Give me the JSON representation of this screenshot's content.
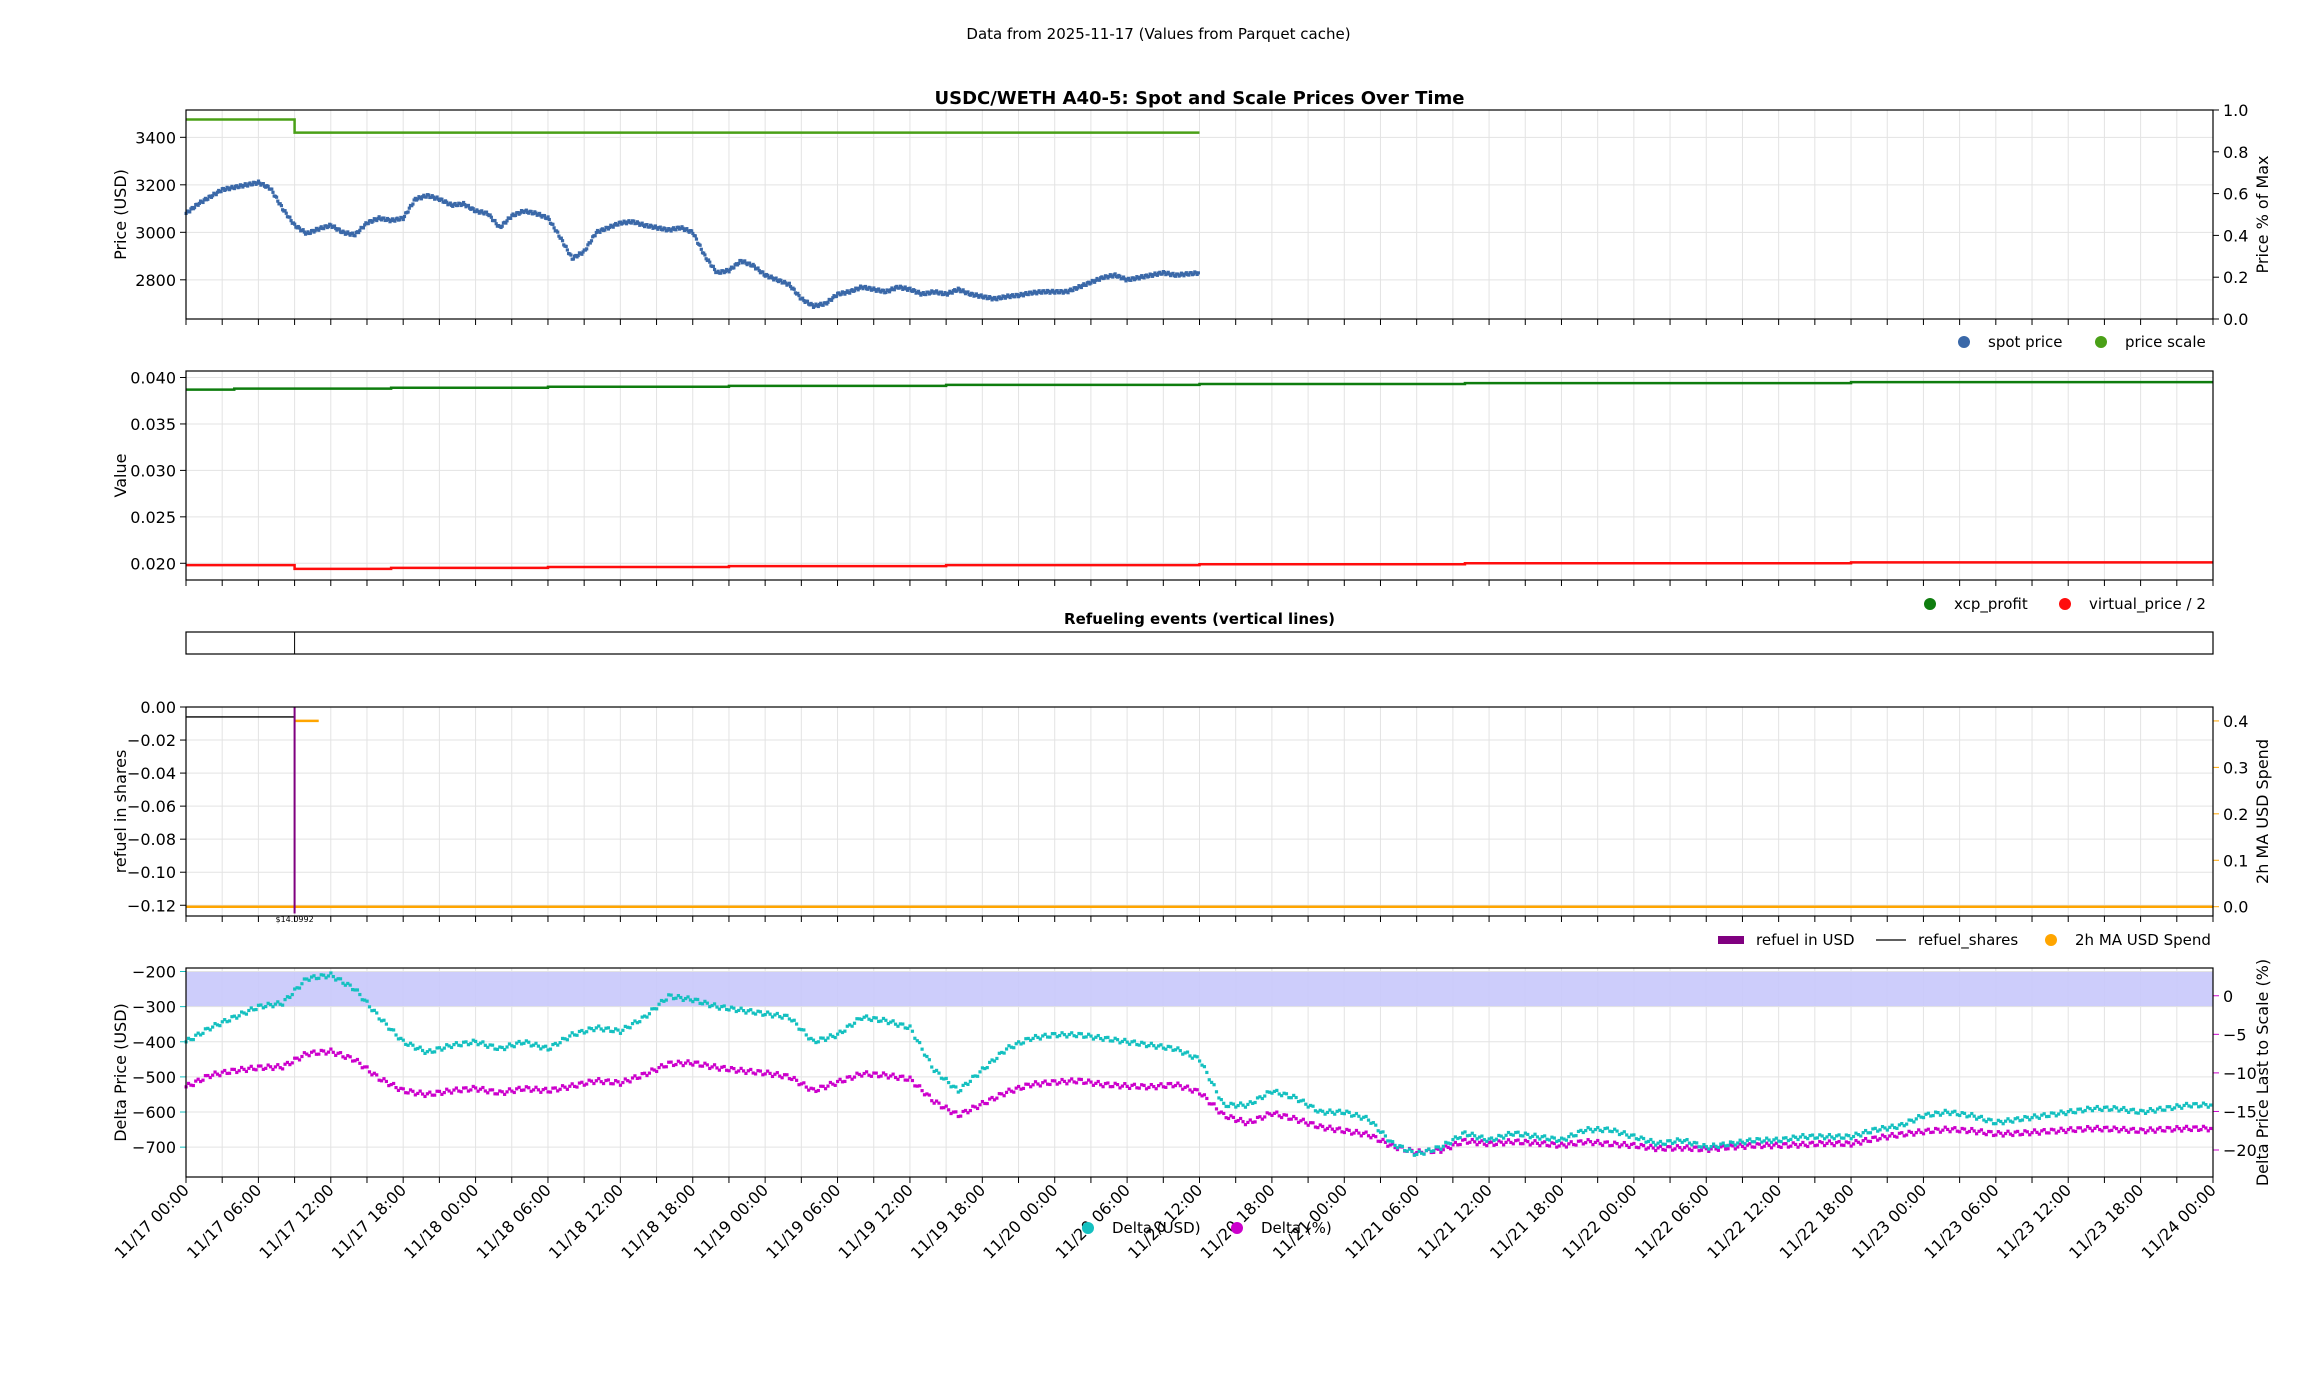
{
  "suptitle": "Data from 2025-11-17 (Values from Parquet cache)",
  "colors": {
    "spot": "#3a68a8",
    "scale": "#4aa017",
    "xcp": "#0f7d0f",
    "vp": "#ff0d0d",
    "refuel_usd": "#800080",
    "refuel_shares": "#000000",
    "ma_spend": "#ffa500",
    "delta_usd": "#14c0c0",
    "delta_pct": "#cc00cc",
    "band": "#c8c8fb"
  },
  "chart_data": [
    {
      "type": "scatter",
      "title": "USDC/WETH A40-5: Spot and Scale Prices Over Time",
      "ylabel": "Price (USD)",
      "ylabel_right": "Price % of Max",
      "ylim": [
        2635,
        3515
      ],
      "yticks": [
        2800,
        3000,
        3200,
        3400
      ],
      "ylim_right": [
        0.0,
        1.0
      ],
      "yticks_right": [
        "0.0",
        "0.2",
        "0.4",
        "0.6",
        "0.8",
        "1.0"
      ],
      "grid": true,
      "legend": "bottom-right",
      "series": [
        {
          "name": "spot price",
          "x": [
            0,
            2,
            4,
            6,
            8,
            10,
            12,
            14,
            16,
            18,
            20,
            22,
            24,
            26,
            28,
            30,
            32,
            34,
            36,
            38,
            40,
            42,
            44,
            46,
            48,
            50,
            52,
            54,
            56,
            58,
            60,
            62,
            64,
            66,
            68,
            70,
            72,
            74,
            76,
            78,
            80,
            82,
            84,
            86,
            88,
            90,
            92,
            94,
            96,
            98,
            100,
            102,
            104,
            106,
            108,
            110,
            112,
            114,
            116,
            118,
            120,
            122,
            124,
            126,
            128,
            130,
            132,
            134,
            136,
            138,
            140,
            142,
            144,
            146,
            148,
            150,
            152,
            154,
            156,
            158,
            160,
            162,
            164,
            166,
            168
          ],
          "y": [
            3080,
            3120,
            3150,
            3180,
            3190,
            3200,
            3210,
            3185,
            3100,
            3030,
            2995,
            3015,
            3030,
            3000,
            2990,
            3040,
            3060,
            3050,
            3060,
            3140,
            3155,
            3140,
            3115,
            3120,
            3090,
            3080,
            3020,
            3070,
            3090,
            3080,
            3060,
            2980,
            2890,
            2920,
            3000,
            3020,
            3040,
            3045,
            3030,
            3020,
            3010,
            3020,
            3000,
            2900,
            2830,
            2840,
            2880,
            2860,
            2820,
            2800,
            2780,
            2720,
            2690,
            2700,
            2740,
            2750,
            2770,
            2760,
            2750,
            2770,
            2760,
            2740,
            2750,
            2740,
            2760,
            2740,
            2730,
            2720,
            2730,
            2735,
            2745,
            2750,
            2750,
            2750,
            2770,
            2790,
            2810,
            2820,
            2800,
            2810,
            2820,
            2830,
            2820,
            2825,
            2830
          ]
        },
        {
          "name": "price scale",
          "x": [
            0,
            18,
            18,
            168
          ],
          "y": [
            3475,
            3475,
            3420,
            3420
          ]
        }
      ]
    },
    {
      "type": "line",
      "ylabel": "Value",
      "ylim": [
        0.0182,
        0.0407
      ],
      "yticks": [
        "0.020",
        "0.025",
        "0.030",
        "0.035",
        "0.040"
      ],
      "grid": true,
      "legend": "bottom-right",
      "series": [
        {
          "name": "xcp_profit",
          "x": [
            0,
            8,
            8,
            34,
            34,
            60,
            60,
            90,
            90,
            126,
            126,
            168,
            168,
            212,
            212,
            276,
            276,
            336
          ],
          "y": [
            0.0387,
            0.0387,
            0.0388,
            0.0388,
            0.0389,
            0.0389,
            0.039,
            0.039,
            0.0391,
            0.0391,
            0.0392,
            0.0392,
            0.0393,
            0.0393,
            0.0394,
            0.0394,
            0.0395,
            0.0395
          ]
        },
        {
          "name": "virtual_price / 2",
          "x": [
            0,
            18,
            18,
            34,
            34,
            60,
            60,
            90,
            90,
            126,
            126,
            168,
            168,
            212,
            212,
            276,
            276,
            336
          ],
          "y": [
            0.0198,
            0.0198,
            0.0194,
            0.0194,
            0.0195,
            0.0195,
            0.0196,
            0.0196,
            0.0197,
            0.0197,
            0.0198,
            0.0198,
            0.0199,
            0.0199,
            0.02,
            0.02,
            0.0201,
            0.0201
          ]
        }
      ]
    },
    {
      "type": "line",
      "title": "Refueling events (vertical lines)",
      "events_x": [
        18
      ]
    },
    {
      "type": "line",
      "ylabel": "refuel in shares",
      "ylabel_right": "2h MA USD Spend",
      "ylim": [
        -0.1265,
        0.0
      ],
      "yticks": [
        "0.00",
        "−0.02",
        "−0.04",
        "−0.06",
        "−0.08",
        "−0.10",
        "−0.12"
      ],
      "ylim_right": [
        -0.02,
        0.43
      ],
      "yticks_right": [
        "0.0",
        "0.1",
        "0.2",
        "0.3",
        "0.4"
      ],
      "annotation": "$14.0992",
      "grid": true,
      "legend": "bottom-right",
      "series": [
        {
          "name": "refuel in USD",
          "x": [
            18,
            18
          ],
          "y": [
            0.0,
            -0.125
          ]
        },
        {
          "name": "refuel_shares",
          "x": [
            0,
            18,
            18
          ],
          "y": [
            -0.006,
            -0.006,
            -0.125
          ]
        },
        {
          "name": "2h MA USD Spend",
          "x": [
            18,
            22,
            0,
            336
          ],
          "y": [
            0.4,
            0.4,
            0.0,
            0.0
          ]
        }
      ]
    },
    {
      "type": "scatter",
      "ylabel": "Delta Price (USD)",
      "ylabel_right": "Delta Price Last to Scale (%)",
      "ylim": [
        -785,
        -190
      ],
      "yticks": [
        "−200",
        "−300",
        "−400",
        "−500",
        "−600",
        "−700"
      ],
      "ylim_right": [
        -23.5,
        3.6
      ],
      "yticks_right": [
        "0",
        "−5",
        "−10",
        "−15",
        "−20"
      ],
      "band_y": [
        -200,
        -300
      ],
      "grid": true,
      "legend": "bottom-center",
      "xlabels": [
        "11/17 00:00",
        "11/17 06:00",
        "11/17 12:00",
        "11/17 18:00",
        "11/18 00:00",
        "11/18 06:00",
        "11/18 12:00",
        "11/18 18:00",
        "11/19 00:00",
        "11/19 06:00",
        "11/19 12:00",
        "11/19 18:00",
        "11/20 00:00",
        "11/20 06:00",
        "11/20 12:00",
        "11/20 18:00",
        "11/21 00:00",
        "11/21 06:00",
        "11/21 12:00",
        "11/21 18:00",
        "11/22 00:00",
        "11/22 06:00",
        "11/22 12:00",
        "11/22 18:00",
        "11/23 00:00",
        "11/23 06:00",
        "11/23 12:00",
        "11/23 18:00",
        "11/24 00:00"
      ],
      "series": [
        {
          "name": "Delta (USD)",
          "x": [
            0,
            4,
            8,
            12,
            16,
            20,
            24,
            28,
            32,
            36,
            40,
            44,
            48,
            52,
            56,
            60,
            64,
            68,
            72,
            76,
            80,
            84,
            88,
            92,
            96,
            100,
            104,
            108,
            112,
            116,
            120,
            124,
            128,
            132,
            136,
            140,
            144,
            148,
            152,
            156,
            160,
            164,
            168,
            172,
            176,
            180,
            184,
            188,
            192,
            196,
            200,
            204,
            208,
            212,
            216,
            220,
            224,
            228,
            232,
            236,
            240,
            244,
            248,
            252,
            256,
            260,
            264,
            268,
            272,
            276,
            280,
            284,
            288,
            292,
            296,
            300,
            304,
            308,
            312,
            316,
            320,
            324,
            328,
            332,
            336
          ],
          "y": [
            -400,
            -360,
            -330,
            -300,
            -290,
            -220,
            -210,
            -250,
            -330,
            -400,
            -430,
            -410,
            -400,
            -420,
            -400,
            -420,
            -380,
            -360,
            -370,
            -330,
            -270,
            -280,
            -300,
            -310,
            -320,
            -330,
            -400,
            -380,
            -330,
            -340,
            -360,
            -480,
            -540,
            -480,
            -420,
            -390,
            -380,
            -380,
            -390,
            -400,
            -410,
            -420,
            -450,
            -580,
            -580,
            -540,
            -560,
            -600,
            -600,
            -620,
            -690,
            -720,
            -700,
            -660,
            -680,
            -660,
            -670,
            -680,
            -650,
            -650,
            -670,
            -690,
            -680,
            -700,
            -690,
            -680,
            -680,
            -670,
            -670,
            -670,
            -650,
            -640,
            -610,
            -600,
            -610,
            -630,
            -620,
            -610,
            -600,
            -590,
            -590,
            -600,
            -590,
            -580,
            -580
          ]
        },
        {
          "name": "Delta (%)",
          "x": [
            0,
            4,
            8,
            12,
            16,
            20,
            24,
            28,
            32,
            36,
            40,
            44,
            48,
            52,
            56,
            60,
            64,
            68,
            72,
            76,
            80,
            84,
            88,
            92,
            96,
            100,
            104,
            108,
            112,
            116,
            120,
            124,
            128,
            132,
            136,
            140,
            144,
            148,
            152,
            156,
            160,
            164,
            168,
            172,
            176,
            180,
            184,
            188,
            192,
            196,
            200,
            204,
            208,
            212,
            216,
            220,
            224,
            228,
            232,
            236,
            240,
            244,
            248,
            252,
            256,
            260,
            264,
            268,
            272,
            276,
            280,
            284,
            288,
            292,
            296,
            300,
            304,
            308,
            312,
            316,
            320,
            324,
            328,
            332,
            336
          ],
          "y": [
            -11.8,
            -10.3,
            -9.7,
            -9.3,
            -9.2,
            -7.5,
            -7.2,
            -8.3,
            -10.7,
            -12.3,
            -12.8,
            -12.3,
            -12.0,
            -12.6,
            -12.0,
            -12.3,
            -11.7,
            -11.0,
            -11.3,
            -10.2,
            -8.8,
            -8.7,
            -9.3,
            -9.7,
            -10.0,
            -10.5,
            -12.3,
            -11.2,
            -10.1,
            -10.3,
            -10.8,
            -13.7,
            -15.5,
            -14.0,
            -12.5,
            -11.5,
            -11.2,
            -11.0,
            -11.5,
            -11.7,
            -11.8,
            -11.5,
            -12.5,
            -15.5,
            -16.5,
            -15.2,
            -16.0,
            -17.0,
            -17.5,
            -18.0,
            -19.5,
            -20.3,
            -20.0,
            -18.8,
            -19.2,
            -18.9,
            -19.1,
            -19.4,
            -18.9,
            -19.2,
            -19.4,
            -19.8,
            -19.7,
            -19.9,
            -19.6,
            -19.4,
            -19.4,
            -19.3,
            -19.1,
            -19.2,
            -18.5,
            -18.0,
            -17.6,
            -17.3,
            -17.5,
            -17.9,
            -17.8,
            -17.6,
            -17.4,
            -17.2,
            -17.3,
            -17.5,
            -17.3,
            -17.2,
            -17.2
          ]
        }
      ]
    }
  ]
}
